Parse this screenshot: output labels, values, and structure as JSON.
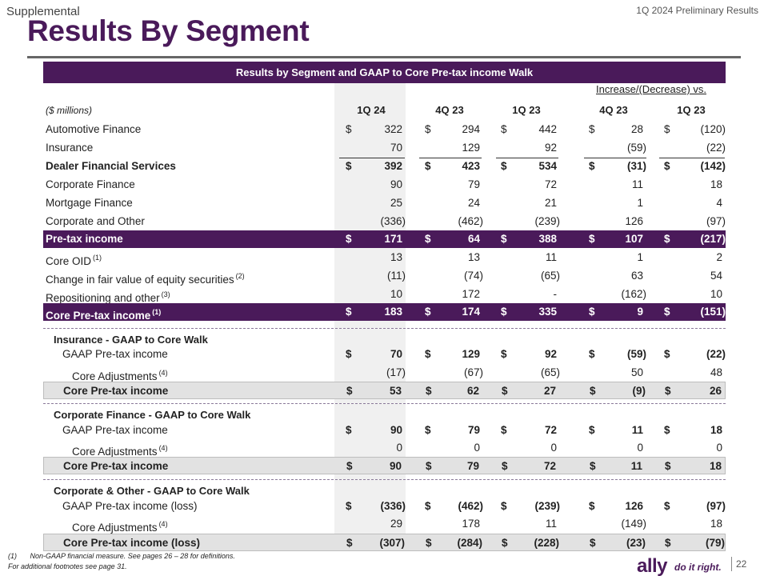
{
  "header": {
    "supplemental": "Supplemental",
    "preliminary": "1Q 2024 Preliminary Results",
    "title": "Results By Segment"
  },
  "banner": "Results by Segment and GAAP to Core Pre-tax income Walk",
  "increase_label": "Increase/(Decrease) vs.",
  "columns": {
    "label": "($ millions)",
    "headers": [
      "1Q 24",
      "4Q 23",
      "1Q 23",
      "4Q 23",
      "1Q 23"
    ]
  },
  "rows": [
    {
      "label": "Automotive Finance",
      "sup": "",
      "values": [
        "322",
        "294",
        "442",
        "28",
        "(120)"
      ],
      "dollar": true,
      "style": ""
    },
    {
      "label": "Insurance",
      "sup": "",
      "values": [
        "70",
        "129",
        "92",
        "(59)",
        "(22)"
      ],
      "dollar": false,
      "style": ""
    },
    {
      "label": "Dealer Financial Services",
      "sup": "",
      "values": [
        "392",
        "423",
        "534",
        "(31)",
        "(142)"
      ],
      "dollar": true,
      "style": "bold topline"
    },
    {
      "label": "Corporate Finance",
      "sup": "",
      "values": [
        "90",
        "79",
        "72",
        "11",
        "18"
      ],
      "dollar": false,
      "style": ""
    },
    {
      "label": "Mortgage Finance",
      "sup": "",
      "values": [
        "25",
        "24",
        "21",
        "1",
        "4"
      ],
      "dollar": false,
      "style": ""
    },
    {
      "label": "Corporate and Other",
      "sup": "",
      "values": [
        "(336)",
        "(462)",
        "(239)",
        "126",
        "(97)"
      ],
      "dollar": false,
      "style": ""
    },
    {
      "label": "Pre-tax income",
      "sup": "",
      "values": [
        "171",
        "64",
        "388",
        "107",
        "(217)"
      ],
      "dollar": true,
      "style": "purple"
    },
    {
      "label": "Core OID",
      "sup": "(1)",
      "values": [
        "13",
        "13",
        "11",
        "1",
        "2"
      ],
      "dollar": false,
      "style": ""
    },
    {
      "label": "Change in fair value of equity securities",
      "sup": "(2)",
      "values": [
        "(11)",
        "(74)",
        "(65)",
        "63",
        "54"
      ],
      "dollar": false,
      "style": ""
    },
    {
      "label": "Repositioning and other",
      "sup": "(3)",
      "values": [
        "10",
        "172",
        "-",
        "(162)",
        "10"
      ],
      "dollar": false,
      "style": ""
    },
    {
      "label": "Core Pre-tax income",
      "sup": "(1)",
      "values": [
        "183",
        "174",
        "335",
        "9",
        "(151)"
      ],
      "dollar": true,
      "style": "purple"
    }
  ],
  "sections": [
    {
      "title": "Insurance - GAAP to Core Walk",
      "rows": [
        {
          "label": "GAAP Pre-tax income",
          "sup": "",
          "values": [
            "70",
            "129",
            "92",
            "(59)",
            "(22)"
          ],
          "dollar": true,
          "style": "bold-vals",
          "indent": 1
        },
        {
          "label": "Core Adjustments",
          "sup": "(4)",
          "values": [
            "(17)",
            "(67)",
            "(65)",
            "50",
            "48"
          ],
          "dollar": false,
          "style": "",
          "indent": 2
        },
        {
          "label": "Core Pre-tax income",
          "sup": "",
          "values": [
            "53",
            "62",
            "27",
            "(9)",
            "26"
          ],
          "dollar": true,
          "style": "grey",
          "indent": 1
        }
      ]
    },
    {
      "title": "Corporate Finance - GAAP to Core Walk",
      "rows": [
        {
          "label": "GAAP Pre-tax income",
          "sup": "",
          "values": [
            "90",
            "79",
            "72",
            "11",
            "18"
          ],
          "dollar": true,
          "style": "bold-vals",
          "indent": 1
        },
        {
          "label": "Core Adjustments",
          "sup": "(4)",
          "values": [
            "0",
            "0",
            "0",
            "0",
            "0"
          ],
          "dollar": false,
          "style": "",
          "indent": 2
        },
        {
          "label": "Core Pre-tax income",
          "sup": "",
          "values": [
            "90",
            "79",
            "72",
            "11",
            "18"
          ],
          "dollar": true,
          "style": "grey",
          "indent": 1
        }
      ]
    },
    {
      "title": "Corporate & Other - GAAP to Core Walk",
      "rows": [
        {
          "label": "GAAP Pre-tax income (loss)",
          "sup": "",
          "values": [
            "(336)",
            "(462)",
            "(239)",
            "126",
            "(97)"
          ],
          "dollar": true,
          "style": "bold-vals",
          "indent": 1
        },
        {
          "label": "Core Adjustments",
          "sup": "(4)",
          "values": [
            "29",
            "178",
            "11",
            "(149)",
            "18"
          ],
          "dollar": false,
          "style": "",
          "indent": 2
        },
        {
          "label": "Core Pre-tax income (loss)",
          "sup": "",
          "values": [
            "(307)",
            "(284)",
            "(228)",
            "(23)",
            "(79)"
          ],
          "dollar": true,
          "style": "grey",
          "indent": 1
        }
      ]
    }
  ],
  "footnotes": {
    "note1_num": "(1)",
    "note1_text": "Non-GAAP financial measure. See pages 26 – 28 for definitions.",
    "note2": "For additional footnotes see page 31."
  },
  "footer": {
    "logo": "ally",
    "tagline": "do it right.",
    "page": "22"
  },
  "colors": {
    "brand_purple": "#4a1a5a",
    "shade": "#f0f0f0",
    "grey_row": "#e2e2e2"
  }
}
